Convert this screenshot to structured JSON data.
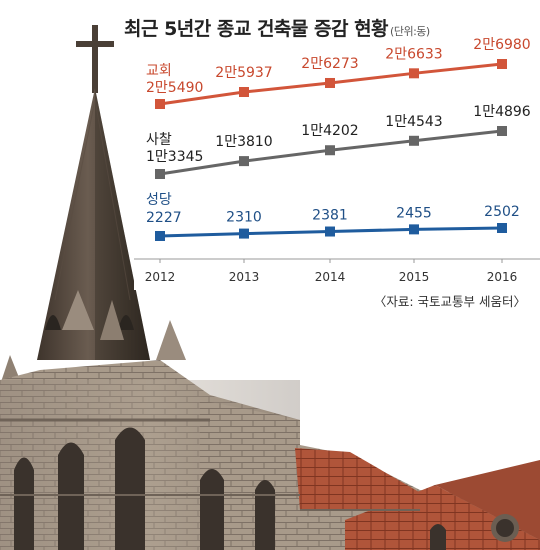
{
  "chart_data": {
    "type": "line",
    "title": "최근 5년간 종교 건축물 증감 현황",
    "unit": "(단위:동)",
    "source": "〈자료: 국토교통부 세움터〉",
    "x": [
      "2012",
      "2013",
      "2014",
      "2015",
      "2016"
    ],
    "series": [
      {
        "name": "교회",
        "color": "#d2553a",
        "values": [
          25490,
          25937,
          26273,
          26633,
          26980
        ],
        "labels": [
          "2만5490",
          "2만5937",
          "2만6273",
          "2만6633",
          "2만6980"
        ]
      },
      {
        "name": "사찰",
        "color": "#666666",
        "values": [
          13345,
          13810,
          14202,
          14543,
          14896
        ],
        "labels": [
          "1만3345",
          "1만3810",
          "1만4202",
          "1만4543",
          "1만4896"
        ]
      },
      {
        "name": "성당",
        "color": "#1f5c9e",
        "values": [
          2227,
          2310,
          2381,
          2455,
          2502
        ],
        "labels": [
          "2227",
          "2310",
          "2381",
          "2455",
          "2502"
        ]
      }
    ]
  }
}
